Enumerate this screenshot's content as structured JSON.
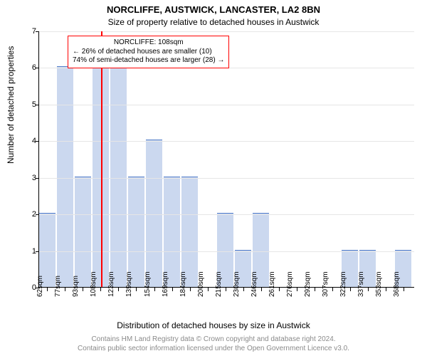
{
  "title_main": "NORCLIFFE, AUSTWICK, LANCASTER, LA2 8BN",
  "title_sub": "Size of property relative to detached houses in Austwick",
  "ylabel": "Number of detached properties",
  "xlabel": "Distribution of detached houses by size in Austwick",
  "footer_line1": "Contains HM Land Registry data © Crown copyright and database right 2024.",
  "footer_line2": "Contains public sector information licensed under the Open Government Licence v3.0.",
  "chart": {
    "type": "histogram",
    "ylim": [
      0,
      7
    ],
    "ytick_step": 1,
    "yticks": [
      0,
      1,
      2,
      3,
      4,
      5,
      6,
      7
    ],
    "x_min_sqm": 55,
    "x_max_sqm": 378,
    "x_tick_start": 62,
    "x_tick_step_sqm": 15.3,
    "x_tick_count": 21,
    "x_tick_unit": "sqm",
    "bar_width_sqm": 15.3,
    "values": [
      2,
      6,
      3,
      6,
      6,
      3,
      4,
      3,
      3,
      0,
      2,
      1,
      2,
      0,
      0,
      0,
      0,
      1,
      1,
      0,
      1
    ],
    "marker_sqm": 108,
    "marker_color": "#ff0000",
    "bar_fill": "#b7cbea",
    "bar_border": "#4472c4",
    "grid_color": "#e6e6e6",
    "bg_color": "#ffffff",
    "axis_color": "#000000",
    "font_family": "Arial",
    "title_fontsize": 13,
    "subtitle_fontsize": 12,
    "axis_label_fontsize": 12,
    "tick_fontsize": 11,
    "annot_fontsize": 10
  },
  "annotation": {
    "line1": "NORCLIFFE: 108sqm",
    "line2": "← 26% of detached houses are smaller (10)",
    "line3": "74% of semi-detached houses are larger (28) →",
    "border_color": "#ff0000",
    "bg_color": "#ffffff"
  }
}
